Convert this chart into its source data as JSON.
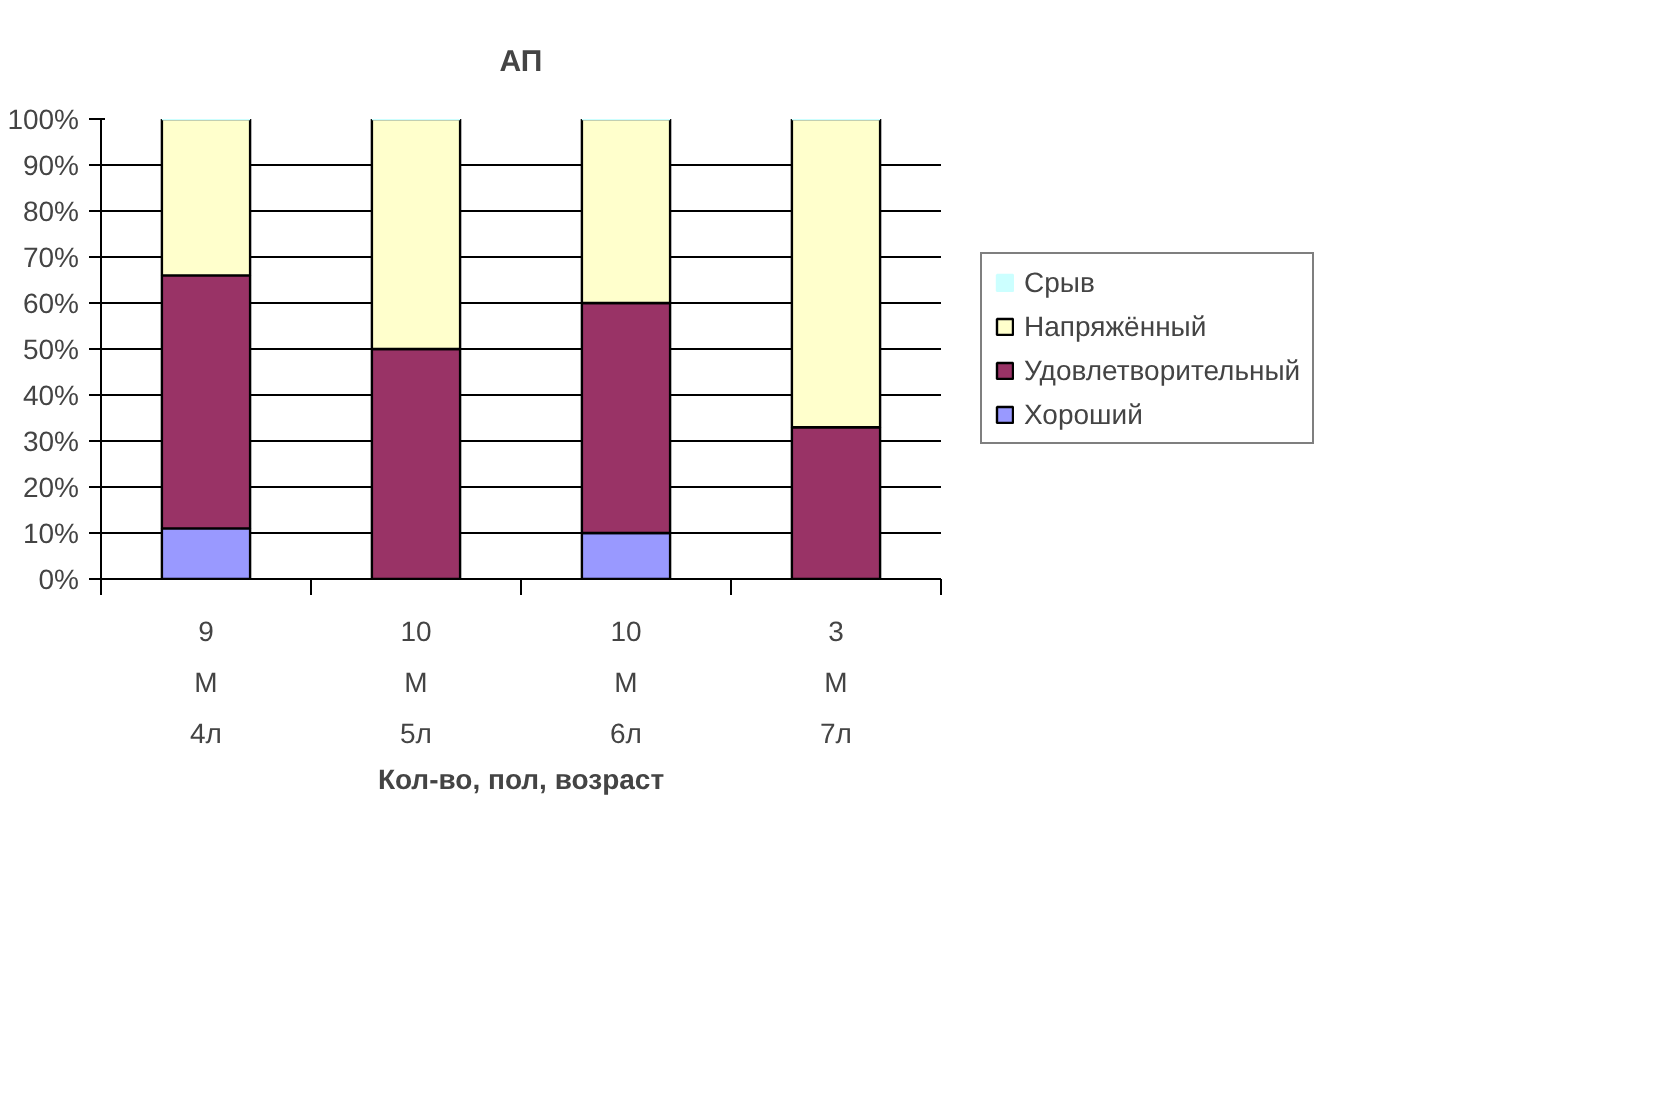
{
  "chart_data": {
    "type": "bar",
    "stacked": true,
    "title": "АП",
    "xlabel": "Кол-во, пол, возраст",
    "categories": [
      "9\nМ\n4л",
      "10\nМ\n5л",
      "10\nМ\n6л",
      "3\nМ\n7л"
    ],
    "series": [
      {
        "name": "Хороший",
        "color": "#9999ff",
        "values": [
          11,
          0,
          10,
          0
        ]
      },
      {
        "name": "Удовлетворительный",
        "color": "#993366",
        "values": [
          55,
          50,
          50,
          33
        ]
      },
      {
        "name": "Напряжённый",
        "color": "#ffffcc",
        "values": [
          34,
          50,
          40,
          67
        ]
      },
      {
        "name": "Срыв",
        "color": "#ccffff",
        "values": [
          0,
          0,
          0,
          0
        ]
      }
    ],
    "ylim": [
      0,
      100
    ],
    "yticks": [
      {
        "value": 0,
        "label": "0%"
      },
      {
        "value": 10,
        "label": "10%"
      },
      {
        "value": 20,
        "label": "20%"
      },
      {
        "value": 30,
        "label": "30%"
      },
      {
        "value": 40,
        "label": "40%"
      },
      {
        "value": 50,
        "label": "50%"
      },
      {
        "value": 60,
        "label": "60%"
      },
      {
        "value": 70,
        "label": "70%"
      },
      {
        "value": 80,
        "label": "80%"
      },
      {
        "value": 90,
        "label": "90%"
      },
      {
        "value": 100,
        "label": "100%"
      }
    ],
    "grid": "y",
    "legend": "right"
  }
}
